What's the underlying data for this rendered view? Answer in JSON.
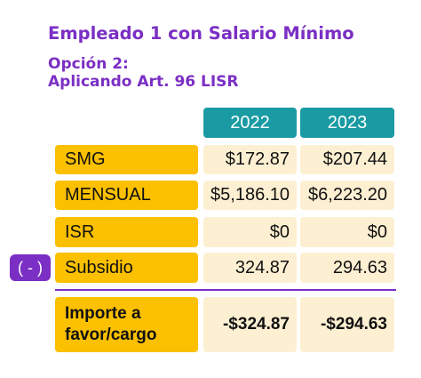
{
  "title": "Empleado 1 con Salario Mínimo",
  "subtitle_line1": "Opción 2:",
  "subtitle_line2": "Aplicando Art. 96 LISR",
  "years": [
    "2022",
    "2023"
  ],
  "minus_badge": "( - )",
  "rows": [
    {
      "label": "SMG",
      "values": [
        "$172.87",
        "$207.44"
      ]
    },
    {
      "label": "MENSUAL",
      "values": [
        "$5,186.10",
        "$6,223.20"
      ]
    },
    {
      "label": "ISR",
      "values": [
        "$0",
        "$0"
      ]
    },
    {
      "label": "Subsidio",
      "values": [
        "324.87",
        "294.63"
      ]
    },
    {
      "label": "Importe a favor/cargo",
      "values": [
        "-$324.87",
        "-$294.63"
      ]
    }
  ],
  "colors": {
    "purple": "#7b2fc4",
    "teal": "#1a9ba3",
    "yellow": "#fbc000",
    "cream": "#fdf0d2"
  }
}
